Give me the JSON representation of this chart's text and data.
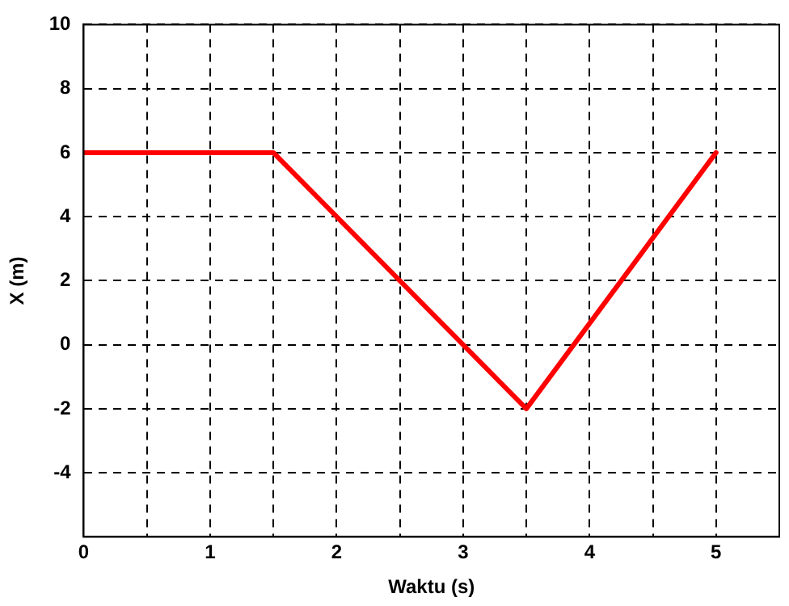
{
  "chart_data": {
    "type": "line",
    "xlabel": "Waktu (s)",
    "ylabel": "X (m)",
    "x": [
      0,
      1.5,
      3.5,
      5
    ],
    "series": [
      {
        "color": "#ff0000",
        "values": [
          6,
          6,
          -2,
          6
        ]
      }
    ],
    "xlim": [
      0,
      5.5
    ],
    "xticks": [
      0,
      {
        "value": 0.5,
        "label": null
      },
      1,
      {
        "value": 1.5,
        "label": null
      },
      2,
      {
        "value": 2.5,
        "label": null
      },
      3,
      {
        "value": 3.5,
        "label": null
      },
      4,
      {
        "value": 4.5,
        "label": null
      },
      5,
      {
        "value": 5.5,
        "label": null
      }
    ],
    "ylim": [
      -6,
      10
    ],
    "yticks": [
      {
        "value": -6,
        "label": null
      },
      -4,
      -2,
      0,
      2,
      4,
      6,
      8,
      10
    ],
    "grid": true,
    "legend": false,
    "marker": "none",
    "line_style": "solid"
  }
}
